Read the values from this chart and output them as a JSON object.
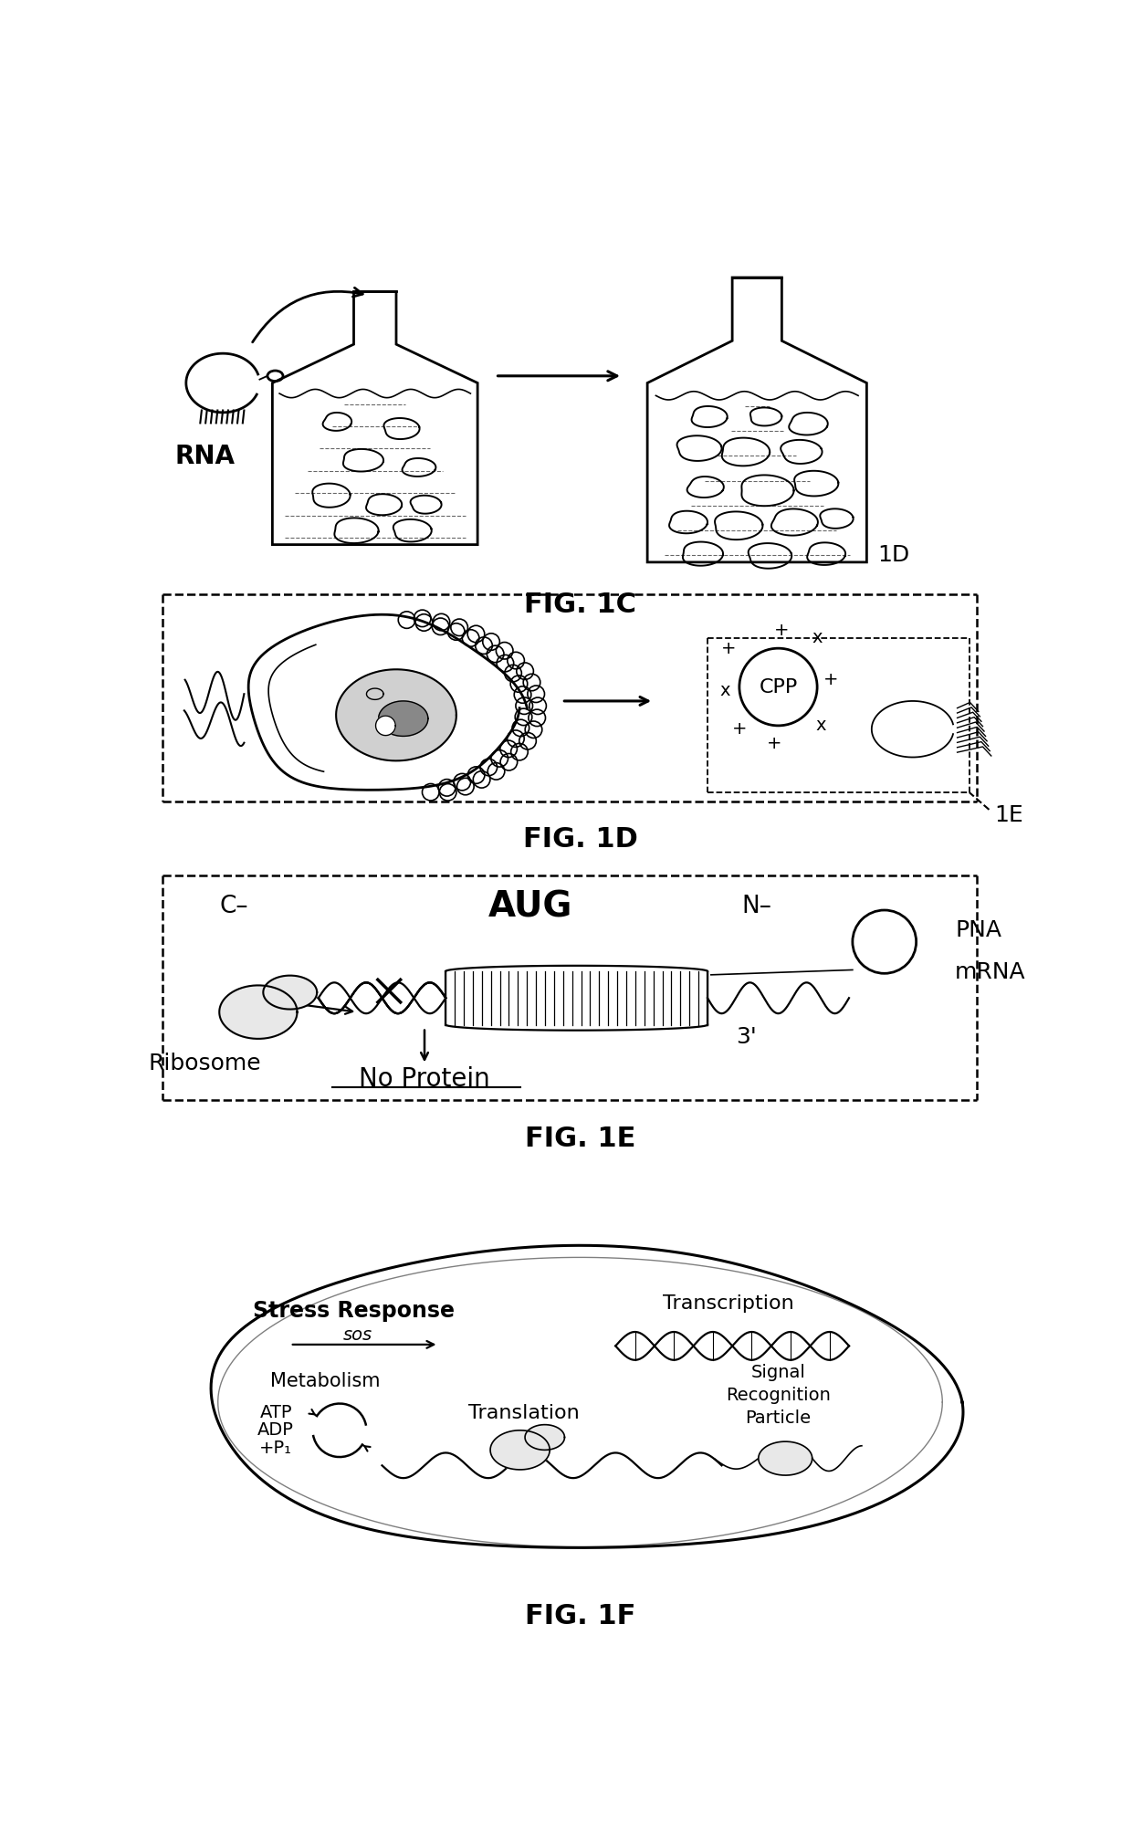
{
  "fig_width": 12.4,
  "fig_height": 20.2,
  "bg_color": "#ffffff",
  "panel_labels": {
    "1C": "FIG. 1C",
    "1D": "FIG. 1D",
    "1E": "FIG. 1E",
    "1F": "FIG. 1F"
  },
  "label_1D": "1D",
  "label_1E": "1E",
  "text_RNA": "RNA",
  "text_CPP": "CPP",
  "text_C_minus": "C–",
  "text_AUG": "AUG",
  "text_N_minus": "N–",
  "text_PNA": "PNA",
  "text_mRNA": "mRNA",
  "text_3prime": "3'",
  "text_Ribosome": "Ribosome",
  "text_NoProtein": "No Protein",
  "text_StressResponse": "Stress Response",
  "text_SOS": "sos",
  "text_Metabolism": "Metabolism",
  "text_ATP": "ATP",
  "text_ADP": "ADP",
  "text_Px": "+P₁",
  "text_Transcription": "Transcription",
  "text_Translation": "Translation",
  "text_SRP": "Signal\nRecognition\nParticle",
  "black": "#000000",
  "gray_light": "#e8e8e8",
  "gray_med": "#c8c8c8"
}
